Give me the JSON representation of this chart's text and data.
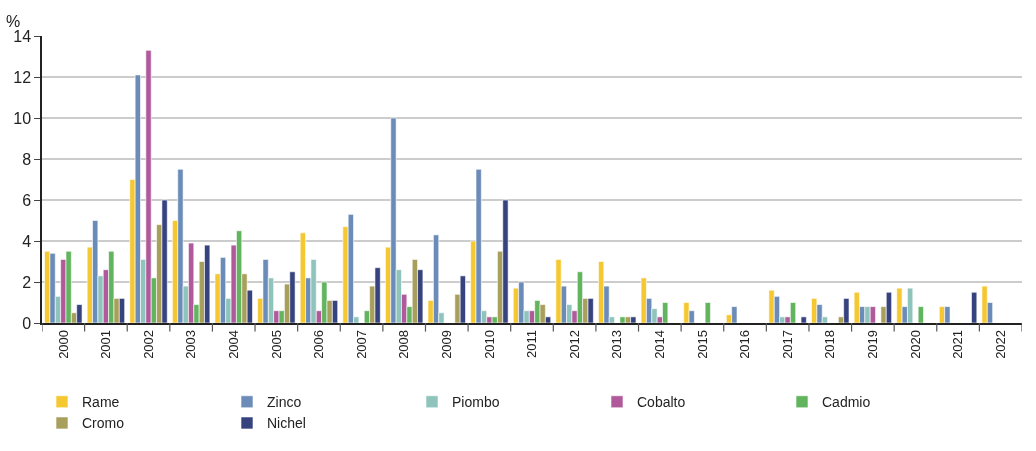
{
  "chart_data": {
    "type": "bar",
    "ylabel": "%",
    "categories": [
      "2000",
      "2001",
      "2002",
      "2003",
      "2004",
      "2005",
      "2006",
      "2007",
      "2008",
      "2009",
      "2010",
      "2011",
      "2012",
      "2013",
      "2014",
      "2015",
      "2016",
      "2017",
      "2018",
      "2019",
      "2020",
      "2021",
      "2022"
    ],
    "series": [
      {
        "name": "Rame",
        "color": "#f5c832",
        "values": [
          3.5,
          3.7,
          7.0,
          5.0,
          2.4,
          1.2,
          4.4,
          4.7,
          3.7,
          1.1,
          4.0,
          1.7,
          3.1,
          3.0,
          2.2,
          1.0,
          0.4,
          1.6,
          1.2,
          1.5,
          1.7,
          0.8,
          1.8
        ]
      },
      {
        "name": "Zinco",
        "color": "#6b8cb8",
        "values": [
          3.4,
          5.0,
          12.1,
          7.5,
          3.2,
          3.1,
          2.2,
          5.3,
          10.0,
          4.3,
          7.5,
          2.0,
          1.8,
          1.8,
          1.2,
          0.6,
          0.8,
          1.3,
          0.9,
          0.8,
          0.8,
          0.8,
          1.0
        ]
      },
      {
        "name": "Piombo",
        "color": "#8fc4bc",
        "values": [
          1.3,
          2.3,
          3.1,
          1.8,
          1.2,
          2.2,
          3.1,
          0.3,
          2.6,
          0.5,
          0.6,
          0.6,
          0.9,
          0.3,
          0.7,
          null,
          null,
          0.3,
          0.3,
          0.8,
          1.7,
          null,
          null
        ]
      },
      {
        "name": "Cobalto",
        "color": "#b05a9c",
        "values": [
          3.1,
          2.6,
          13.3,
          3.9,
          3.8,
          0.6,
          0.6,
          null,
          1.4,
          null,
          0.3,
          0.6,
          0.6,
          null,
          0.3,
          null,
          null,
          0.3,
          null,
          0.8,
          null,
          null,
          null
        ]
      },
      {
        "name": "Cadmio",
        "color": "#62b55e",
        "values": [
          3.5,
          3.5,
          2.2,
          0.9,
          4.5,
          0.6,
          2.0,
          0.6,
          0.8,
          null,
          0.3,
          1.1,
          2.5,
          0.3,
          1.0,
          1.0,
          null,
          1.0,
          null,
          null,
          0.8,
          null,
          null
        ]
      },
      {
        "name": "Cromo",
        "color": "#a89f5c",
        "values": [
          0.5,
          1.2,
          4.8,
          3.0,
          2.4,
          1.9,
          1.1,
          1.8,
          3.1,
          1.4,
          3.5,
          0.9,
          1.2,
          0.3,
          null,
          null,
          null,
          null,
          0.3,
          0.8,
          null,
          null,
          null
        ]
      },
      {
        "name": "Nichel",
        "color": "#36437e",
        "values": [
          0.9,
          1.2,
          6.0,
          3.8,
          1.6,
          2.5,
          1.1,
          2.7,
          2.6,
          2.3,
          6.0,
          0.3,
          1.2,
          0.3,
          null,
          null,
          null,
          0.3,
          1.2,
          1.5,
          null,
          1.5,
          null
        ]
      }
    ],
    "ylim": [
      0,
      14
    ],
    "yticks": [
      0,
      2,
      4,
      6,
      8,
      10,
      12,
      14
    ],
    "grid": "y",
    "legend": "bottom"
  }
}
